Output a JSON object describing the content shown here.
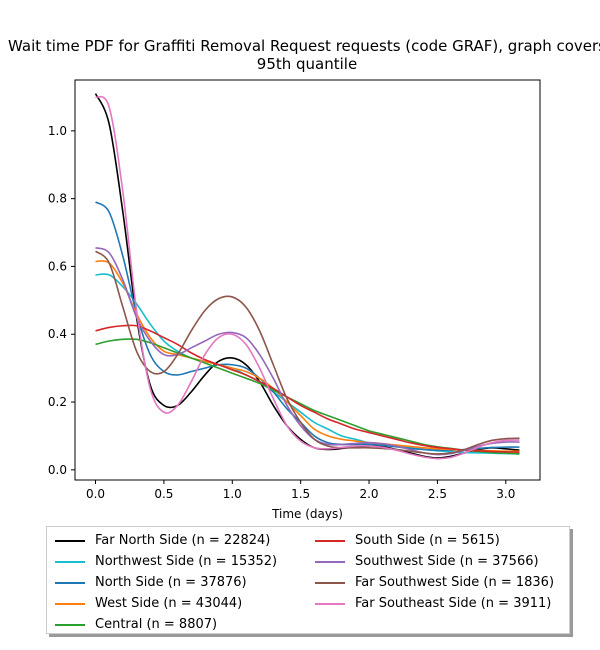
{
  "chart_data": {
    "type": "line",
    "title": "Wait time PDF for Graffiti Removal Request  requests (code GRAF), graph covers 95th quantile",
    "xlabel": "Time (days)",
    "ylabel": "",
    "xlim": [
      -0.15,
      3.25
    ],
    "ylim": [
      -0.03,
      1.15
    ],
    "xticks": [
      0.0,
      0.5,
      1.0,
      1.5,
      2.0,
      2.5,
      3.0
    ],
    "xtick_labels": [
      "0.0",
      "0.5",
      "1.0",
      "1.5",
      "2.0",
      "2.5",
      "3.0"
    ],
    "yticks": [
      0.0,
      0.2,
      0.4,
      0.6,
      0.8,
      1.0
    ],
    "ytick_labels": [
      "0.0",
      "0.2",
      "0.4",
      "0.6",
      "0.8",
      "1.0"
    ],
    "grid": false,
    "legend_position": "below",
    "x": [
      0,
      0.1,
      0.2,
      0.3,
      0.4,
      0.5,
      0.6,
      0.7,
      0.8,
      0.9,
      1.0,
      1.1,
      1.2,
      1.3,
      1.4,
      1.5,
      1.6,
      1.7,
      1.8,
      1.9,
      2.0,
      2.1,
      2.2,
      2.3,
      2.4,
      2.5,
      2.6,
      2.7,
      2.8,
      2.9,
      3.0,
      3.1
    ],
    "series": [
      {
        "name": "Far North Side (n = 22824)",
        "color": "#000000",
        "values": [
          1.11,
          1.02,
          0.76,
          0.45,
          0.25,
          0.19,
          0.19,
          0.23,
          0.28,
          0.32,
          0.33,
          0.31,
          0.26,
          0.19,
          0.13,
          0.09,
          0.065,
          0.06,
          0.063,
          0.068,
          0.07,
          0.068,
          0.06,
          0.05,
          0.04,
          0.035,
          0.04,
          0.05,
          0.06,
          0.065,
          0.062,
          0.058
        ]
      },
      {
        "name": "Northwest Side (n = 15352)",
        "color": "#17becf",
        "values": [
          0.575,
          0.575,
          0.54,
          0.49,
          0.43,
          0.38,
          0.35,
          0.33,
          0.32,
          0.31,
          0.3,
          0.28,
          0.26,
          0.23,
          0.2,
          0.17,
          0.14,
          0.12,
          0.1,
          0.09,
          0.08,
          0.075,
          0.07,
          0.065,
          0.06,
          0.056,
          0.053,
          0.051,
          0.05,
          0.049,
          0.048,
          0.047
        ]
      },
      {
        "name": "North Side (n = 37876)",
        "color": "#1f77b4",
        "values": [
          0.79,
          0.76,
          0.63,
          0.46,
          0.34,
          0.29,
          0.28,
          0.29,
          0.3,
          0.31,
          0.31,
          0.3,
          0.27,
          0.23,
          0.18,
          0.14,
          0.1,
          0.08,
          0.075,
          0.075,
          0.075,
          0.072,
          0.068,
          0.063,
          0.06,
          0.058,
          0.058,
          0.06,
          0.063,
          0.066,
          0.067,
          0.067
        ]
      },
      {
        "name": "West Side (n = 43044)",
        "color": "#ff7f0e",
        "values": [
          0.615,
          0.61,
          0.55,
          0.46,
          0.39,
          0.35,
          0.34,
          0.33,
          0.32,
          0.31,
          0.3,
          0.29,
          0.27,
          0.24,
          0.2,
          0.16,
          0.12,
          0.1,
          0.09,
          0.085,
          0.08,
          0.077,
          0.073,
          0.069,
          0.065,
          0.062,
          0.06,
          0.058,
          0.057,
          0.056,
          0.055,
          0.055
        ]
      },
      {
        "name": "Central (n = 8807)",
        "color": "#2ca02c",
        "values": [
          0.37,
          0.38,
          0.385,
          0.385,
          0.375,
          0.36,
          0.345,
          0.33,
          0.315,
          0.3,
          0.285,
          0.27,
          0.255,
          0.235,
          0.215,
          0.195,
          0.175,
          0.16,
          0.145,
          0.13,
          0.115,
          0.105,
          0.095,
          0.085,
          0.075,
          0.068,
          0.063,
          0.058,
          0.054,
          0.051,
          0.049,
          0.047
        ]
      },
      {
        "name": "South Side (n = 5615)",
        "color": "#d62728",
        "values": [
          0.41,
          0.42,
          0.425,
          0.425,
          0.41,
          0.39,
          0.37,
          0.345,
          0.325,
          0.31,
          0.295,
          0.28,
          0.26,
          0.24,
          0.215,
          0.19,
          0.17,
          0.15,
          0.135,
          0.12,
          0.11,
          0.1,
          0.09,
          0.08,
          0.072,
          0.066,
          0.062,
          0.058,
          0.056,
          0.054,
          0.053,
          0.052
        ]
      },
      {
        "name": "Southwest Side (n = 37566)",
        "color": "#9467bd",
        "values": [
          0.655,
          0.64,
          0.56,
          0.45,
          0.38,
          0.34,
          0.34,
          0.36,
          0.38,
          0.4,
          0.405,
          0.39,
          0.34,
          0.27,
          0.19,
          0.13,
          0.09,
          0.075,
          0.075,
          0.078,
          0.08,
          0.077,
          0.07,
          0.06,
          0.05,
          0.045,
          0.048,
          0.058,
          0.07,
          0.078,
          0.082,
          0.082
        ]
      },
      {
        "name": "Far Southwest Side (n = 1836)",
        "color": "#8c564b",
        "values": [
          0.645,
          0.61,
          0.48,
          0.35,
          0.29,
          0.29,
          0.34,
          0.41,
          0.47,
          0.505,
          0.51,
          0.48,
          0.41,
          0.31,
          0.21,
          0.14,
          0.09,
          0.07,
          0.065,
          0.065,
          0.065,
          0.063,
          0.06,
          0.055,
          0.05,
          0.047,
          0.05,
          0.06,
          0.075,
          0.087,
          0.092,
          0.093
        ]
      },
      {
        "name": "Far Southeast Side (n = 3911)",
        "color": "#e377c2",
        "values": [
          1.1,
          1.07,
          0.82,
          0.47,
          0.24,
          0.17,
          0.19,
          0.26,
          0.34,
          0.39,
          0.4,
          0.37,
          0.3,
          0.21,
          0.13,
          0.085,
          0.065,
          0.062,
          0.066,
          0.07,
          0.07,
          0.066,
          0.058,
          0.047,
          0.038,
          0.033,
          0.037,
          0.05,
          0.067,
          0.08,
          0.087,
          0.088
        ]
      }
    ]
  }
}
